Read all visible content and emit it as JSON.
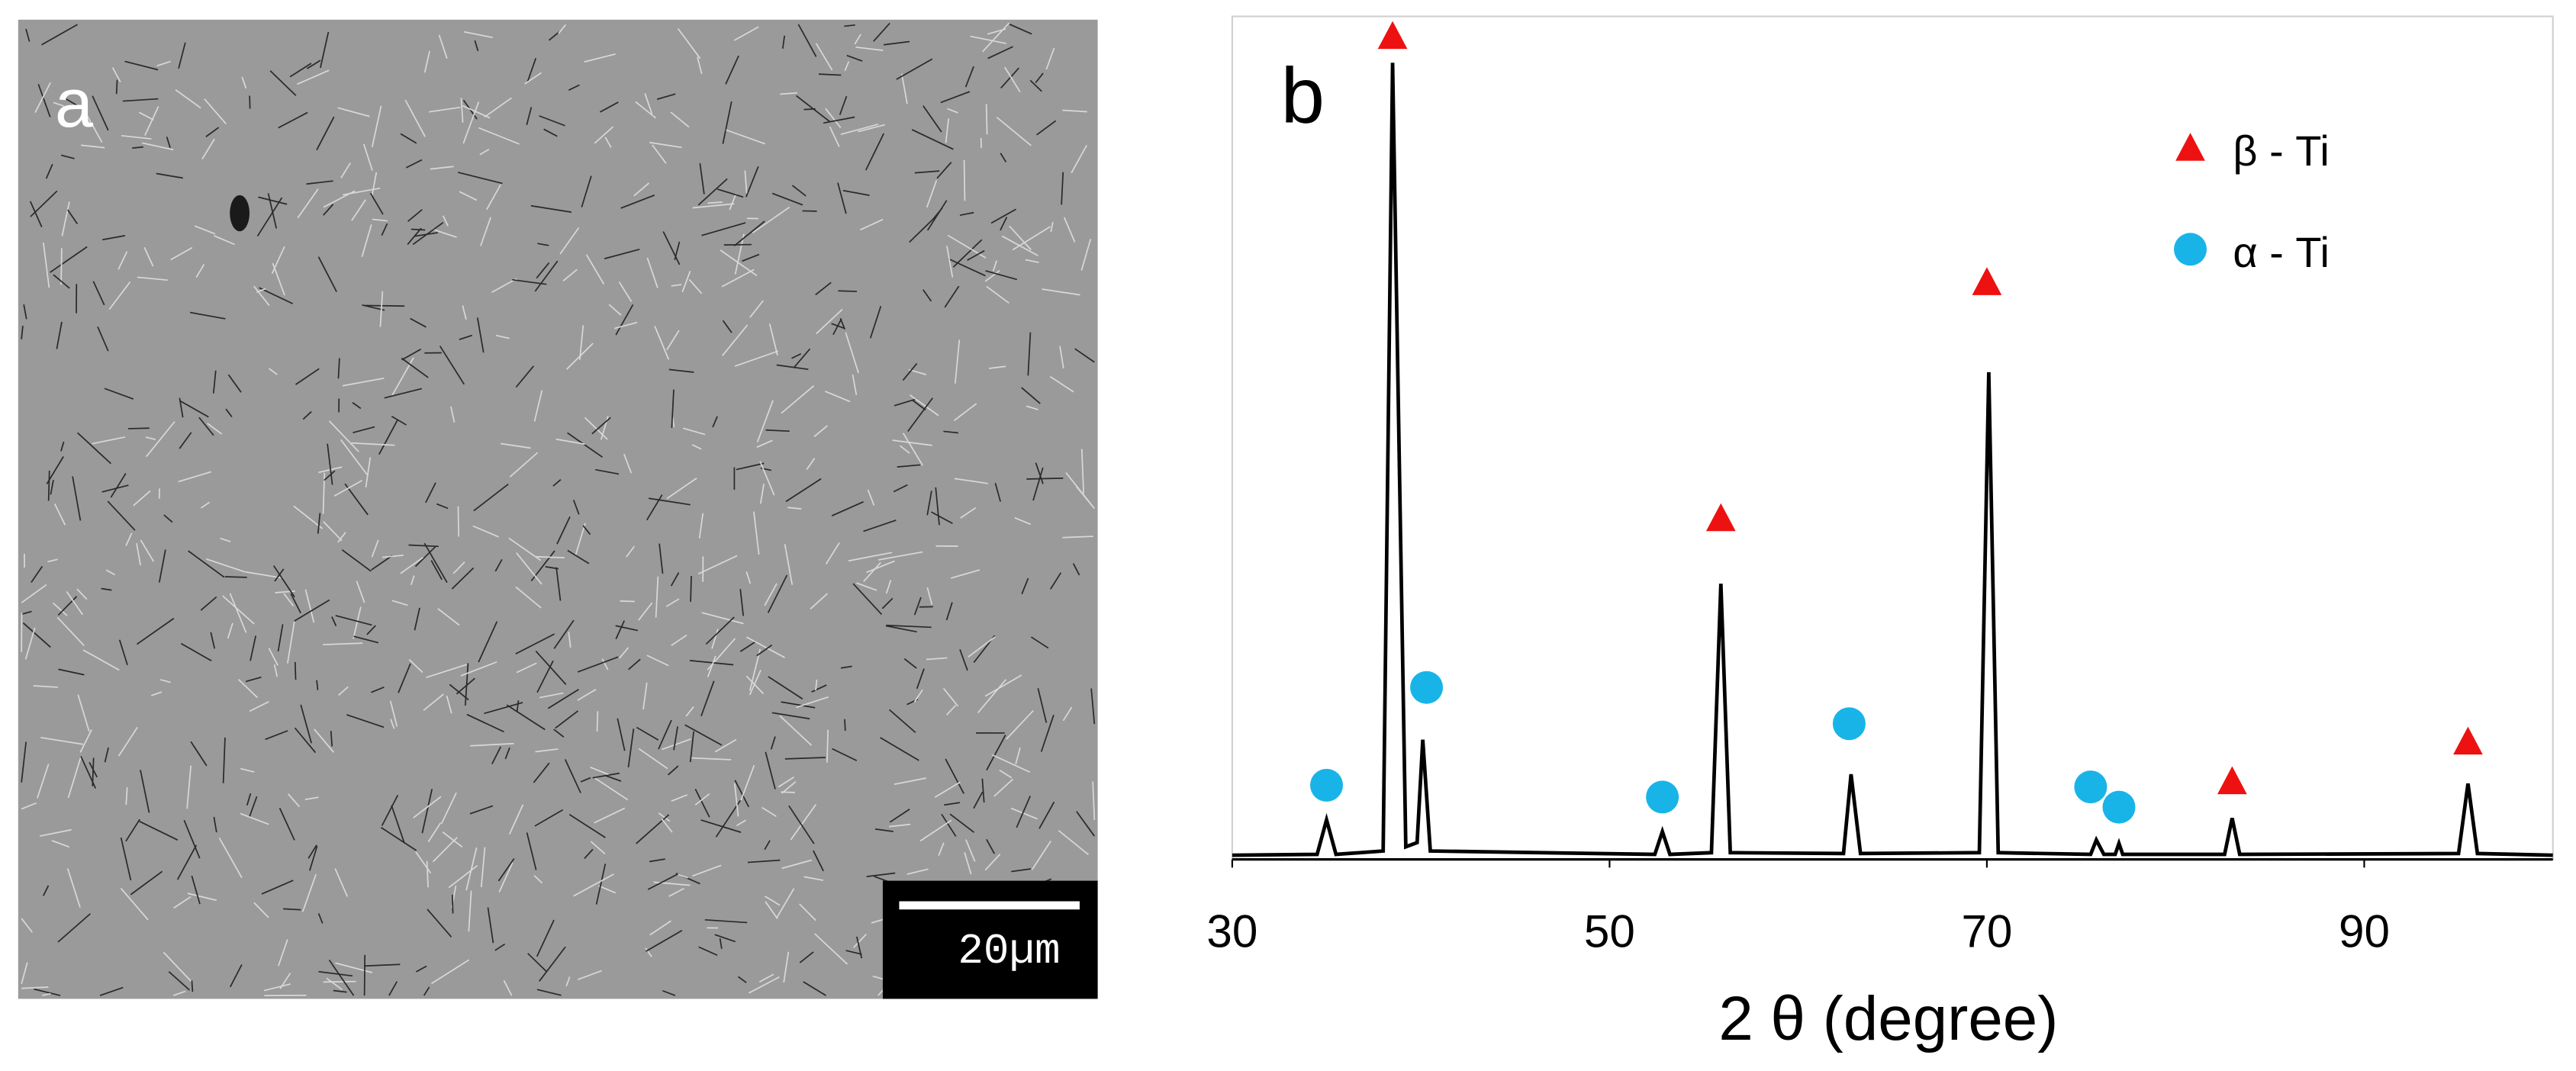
{
  "panel_a": {
    "label": "a",
    "scale_bar": "20µm"
  },
  "chart_data": {
    "type": "line",
    "panel_label": "b",
    "x_label": "2 θ (degree)",
    "xlim": [
      30,
      100
    ],
    "xticks": [
      30,
      50,
      70,
      90
    ],
    "ylim": [
      0,
      100
    ],
    "series": [
      {
        "color": "#000000",
        "x": [
          30,
          34.5,
          35,
          35.5,
          38,
          38.5,
          39.2,
          39.8,
          40.1,
          40.5,
          52.4,
          52.8,
          53.2,
          55.4,
          55.9,
          56.4,
          62.4,
          62.8,
          63.3,
          69.6,
          70.1,
          70.6,
          75.5,
          75.8,
          76.2,
          76.8,
          77,
          77.2,
          82.6,
          83,
          83.4,
          95,
          95.5,
          96,
          100
        ],
        "values": [
          0.5,
          0.6,
          4.7,
          0.6,
          1,
          94.5,
          1.5,
          2,
          14.2,
          1,
          0.6,
          3.3,
          0.6,
          0.8,
          32.7,
          0.8,
          0.7,
          10.1,
          0.7,
          0.8,
          57.8,
          0.8,
          0.6,
          2.3,
          0.6,
          0.6,
          1.9,
          0.6,
          0.6,
          4.9,
          0.6,
          0.7,
          9,
          0.7,
          0.5
        ]
      }
    ],
    "markers": [
      {
        "name": "β - Ti",
        "color": "#ee1111",
        "shape": "triangle",
        "x": [
          38.5,
          55.9,
          70,
          83,
          95.5
        ],
        "values": [
          97.7,
          40.5,
          68.5,
          9.3,
          14
        ]
      },
      {
        "name": "α - Ti",
        "color": "#18b4e8",
        "shape": "circle",
        "x": [
          35,
          40.3,
          52.8,
          62.7,
          75.5,
          77
        ],
        "values": [
          8.8,
          20.4,
          7.4,
          16.1,
          8.6,
          6.2
        ]
      }
    ]
  }
}
